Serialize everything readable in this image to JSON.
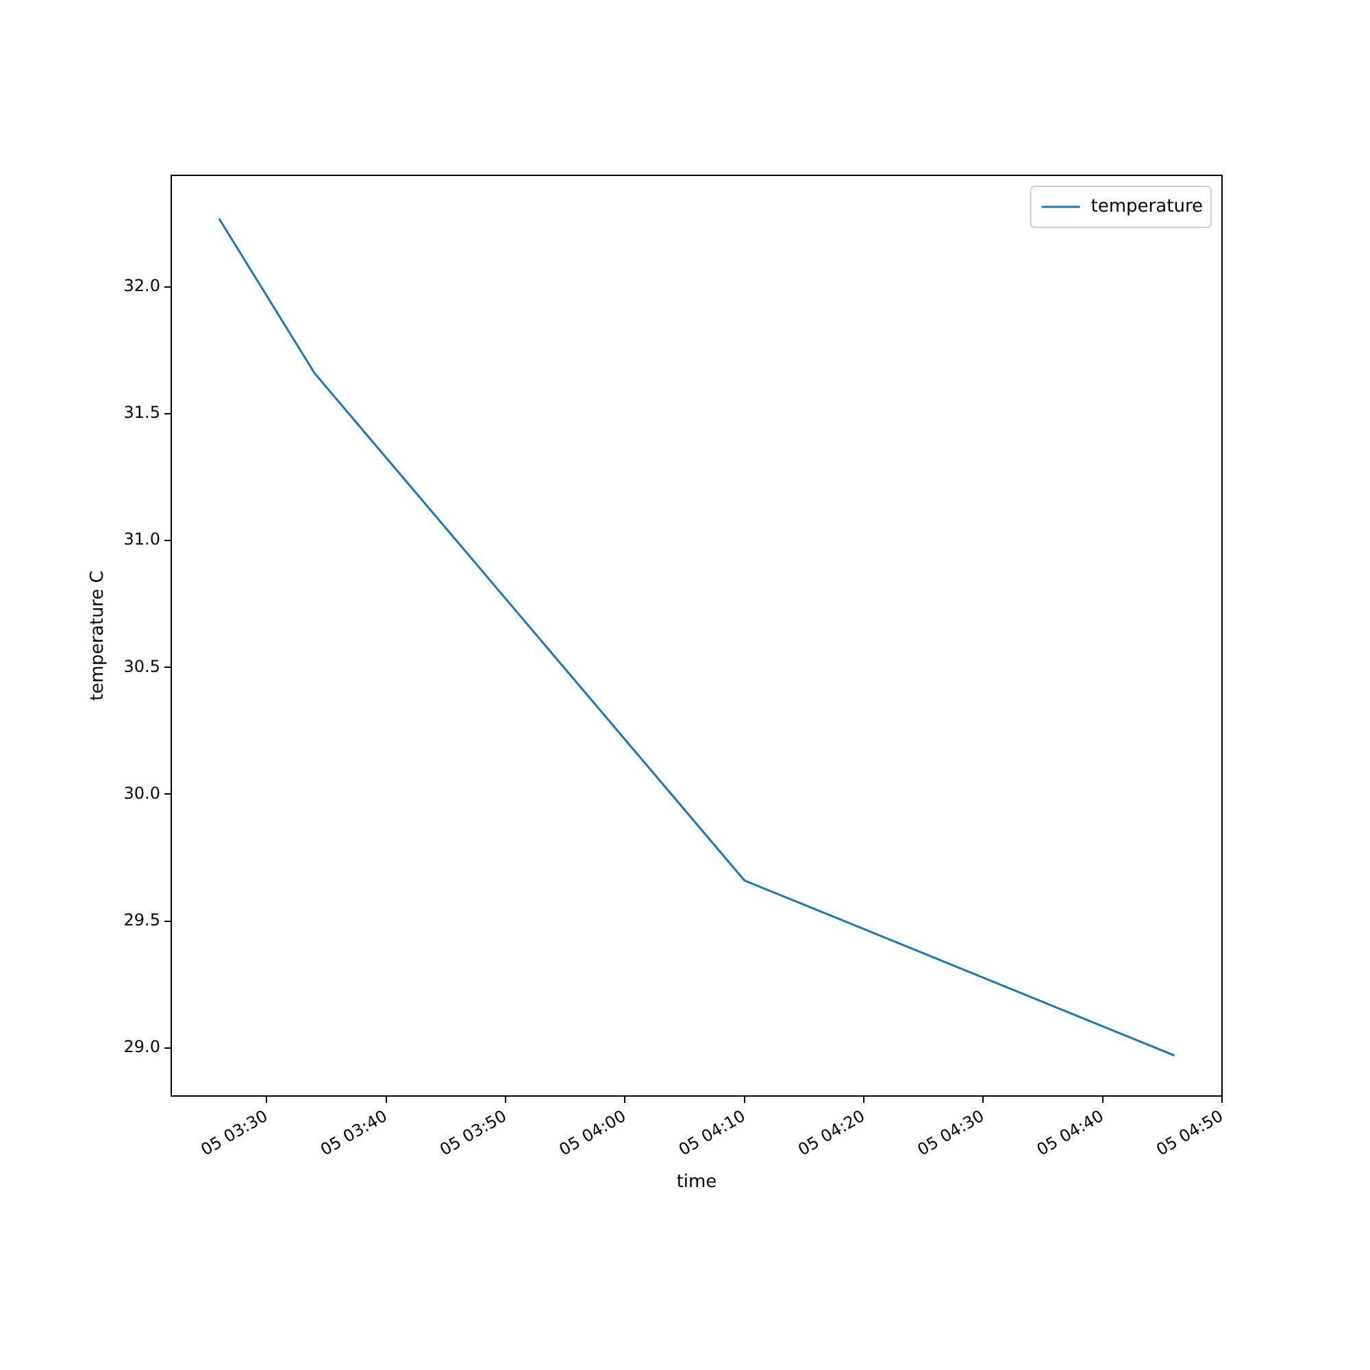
{
  "chart_data": {
    "type": "line",
    "xlabel": "time",
    "ylabel": "temperature C",
    "x": [
      "--01-05T03:26",
      "--01-05T03:34",
      "--01-05T04:10",
      "--01-05T04:46"
    ],
    "series": [
      {
        "name": "temperature",
        "color": "#1f77b4",
        "values": [
          32.27,
          31.66,
          29.66,
          28.97
        ]
      }
    ],
    "xlim": [
      "--01-05T03:22",
      "--01-05T04:50"
    ],
    "xticks": [
      {
        "value": "--01-05T03:30",
        "label": "05 03:30"
      },
      {
        "value": "--01-05T03:40",
        "label": "05 03:40"
      },
      {
        "value": "--01-05T03:50",
        "label": "05 03:50"
      },
      {
        "value": "--01-05T04:00",
        "label": "05 04:00"
      },
      {
        "value": "--01-05T04:10",
        "label": "05 04:10"
      },
      {
        "value": "--01-05T04:20",
        "label": "05 04:20"
      },
      {
        "value": "--01-05T04:30",
        "label": "05 04:30"
      },
      {
        "value": "--01-05T04:40",
        "label": "05 04:40"
      },
      {
        "value": "--01-05T04:50",
        "label": "05 04:50"
      }
    ],
    "ylim": [
      28.81,
      32.44
    ],
    "yticks": [
      {
        "value": 29.0,
        "label": "29.0"
      },
      {
        "value": 29.5,
        "label": "29.5"
      },
      {
        "value": 30.0,
        "label": "30.0"
      },
      {
        "value": 30.5,
        "label": "30.5"
      },
      {
        "value": 31.0,
        "label": "31.0"
      },
      {
        "value": 31.5,
        "label": "31.5"
      },
      {
        "value": 32.0,
        "label": "32.0"
      }
    ],
    "grid": false,
    "legend": "top right",
    "marker": "none",
    "line_style": "solid"
  }
}
